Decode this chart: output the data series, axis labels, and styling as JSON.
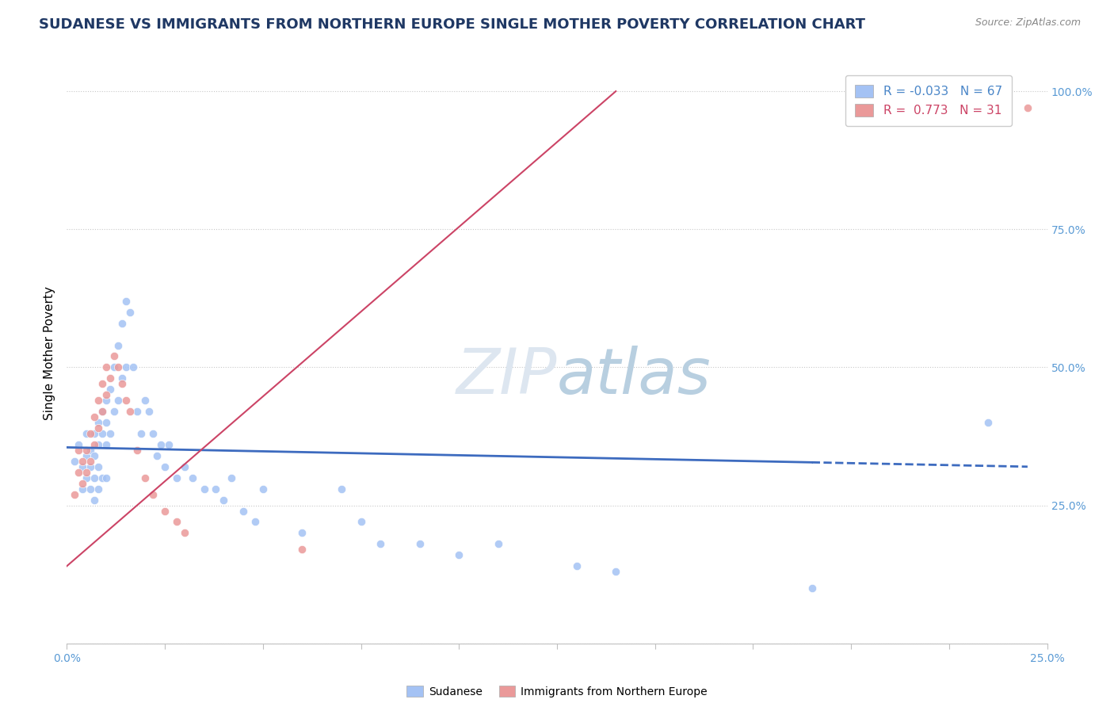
{
  "title": "SUDANESE VS IMMIGRANTS FROM NORTHERN EUROPE SINGLE MOTHER POVERTY CORRELATION CHART",
  "source": "Source: ZipAtlas.com",
  "ylabel": "Single Mother Poverty",
  "yticks": [
    0.0,
    0.25,
    0.5,
    0.75,
    1.0
  ],
  "ytick_labels": [
    "",
    "25.0%",
    "50.0%",
    "75.0%",
    "100.0%"
  ],
  "xmin": 0.0,
  "xmax": 0.25,
  "ymin": 0.0,
  "ymax": 1.05,
  "legend_blue_label": "Sudanese",
  "legend_pink_label": "Immigrants from Northern Europe",
  "blue_R": -0.033,
  "blue_N": 67,
  "pink_R": 0.773,
  "pink_N": 31,
  "blue_color": "#a4c2f4",
  "pink_color": "#ea9999",
  "blue_line_color": "#3d6bbf",
  "pink_line_color": "#cc4466",
  "watermark_zip": "ZIP",
  "watermark_atlas": "atlas",
  "watermark_color_zip": "#d0dce8",
  "watermark_color_atlas": "#b8cfe8",
  "blue_scatter_x": [
    0.002,
    0.003,
    0.004,
    0.004,
    0.005,
    0.005,
    0.005,
    0.006,
    0.006,
    0.006,
    0.007,
    0.007,
    0.007,
    0.007,
    0.008,
    0.008,
    0.008,
    0.008,
    0.009,
    0.009,
    0.009,
    0.01,
    0.01,
    0.01,
    0.01,
    0.011,
    0.011,
    0.012,
    0.012,
    0.013,
    0.013,
    0.014,
    0.014,
    0.015,
    0.015,
    0.016,
    0.017,
    0.018,
    0.019,
    0.02,
    0.021,
    0.022,
    0.023,
    0.024,
    0.025,
    0.026,
    0.028,
    0.03,
    0.032,
    0.035,
    0.038,
    0.04,
    0.042,
    0.045,
    0.048,
    0.05,
    0.06,
    0.07,
    0.075,
    0.08,
    0.09,
    0.1,
    0.11,
    0.13,
    0.14,
    0.19,
    0.235
  ],
  "blue_scatter_y": [
    0.33,
    0.36,
    0.28,
    0.32,
    0.34,
    0.3,
    0.38,
    0.35,
    0.32,
    0.28,
    0.38,
    0.34,
    0.3,
    0.26,
    0.4,
    0.36,
    0.32,
    0.28,
    0.42,
    0.38,
    0.3,
    0.44,
    0.4,
    0.36,
    0.3,
    0.46,
    0.38,
    0.5,
    0.42,
    0.54,
    0.44,
    0.58,
    0.48,
    0.62,
    0.5,
    0.6,
    0.5,
    0.42,
    0.38,
    0.44,
    0.42,
    0.38,
    0.34,
    0.36,
    0.32,
    0.36,
    0.3,
    0.32,
    0.3,
    0.28,
    0.28,
    0.26,
    0.3,
    0.24,
    0.22,
    0.28,
    0.2,
    0.28,
    0.22,
    0.18,
    0.18,
    0.16,
    0.18,
    0.14,
    0.13,
    0.1,
    0.4
  ],
  "pink_scatter_x": [
    0.002,
    0.003,
    0.003,
    0.004,
    0.004,
    0.005,
    0.005,
    0.006,
    0.006,
    0.007,
    0.007,
    0.008,
    0.008,
    0.009,
    0.009,
    0.01,
    0.01,
    0.011,
    0.012,
    0.013,
    0.014,
    0.015,
    0.016,
    0.018,
    0.02,
    0.022,
    0.025,
    0.028,
    0.03,
    0.06,
    0.245
  ],
  "pink_scatter_y": [
    0.27,
    0.31,
    0.35,
    0.29,
    0.33,
    0.31,
    0.35,
    0.33,
    0.38,
    0.36,
    0.41,
    0.39,
    0.44,
    0.42,
    0.47,
    0.45,
    0.5,
    0.48,
    0.52,
    0.5,
    0.47,
    0.44,
    0.42,
    0.35,
    0.3,
    0.27,
    0.24,
    0.22,
    0.2,
    0.17,
    0.97
  ],
  "blue_line_x": [
    0.0,
    0.245
  ],
  "blue_line_y": [
    0.355,
    0.32
  ],
  "pink_line_x": [
    0.0,
    0.14
  ],
  "pink_line_y": [
    0.14,
    1.0
  ],
  "figsize": [
    14.06,
    8.92
  ],
  "dpi": 100
}
